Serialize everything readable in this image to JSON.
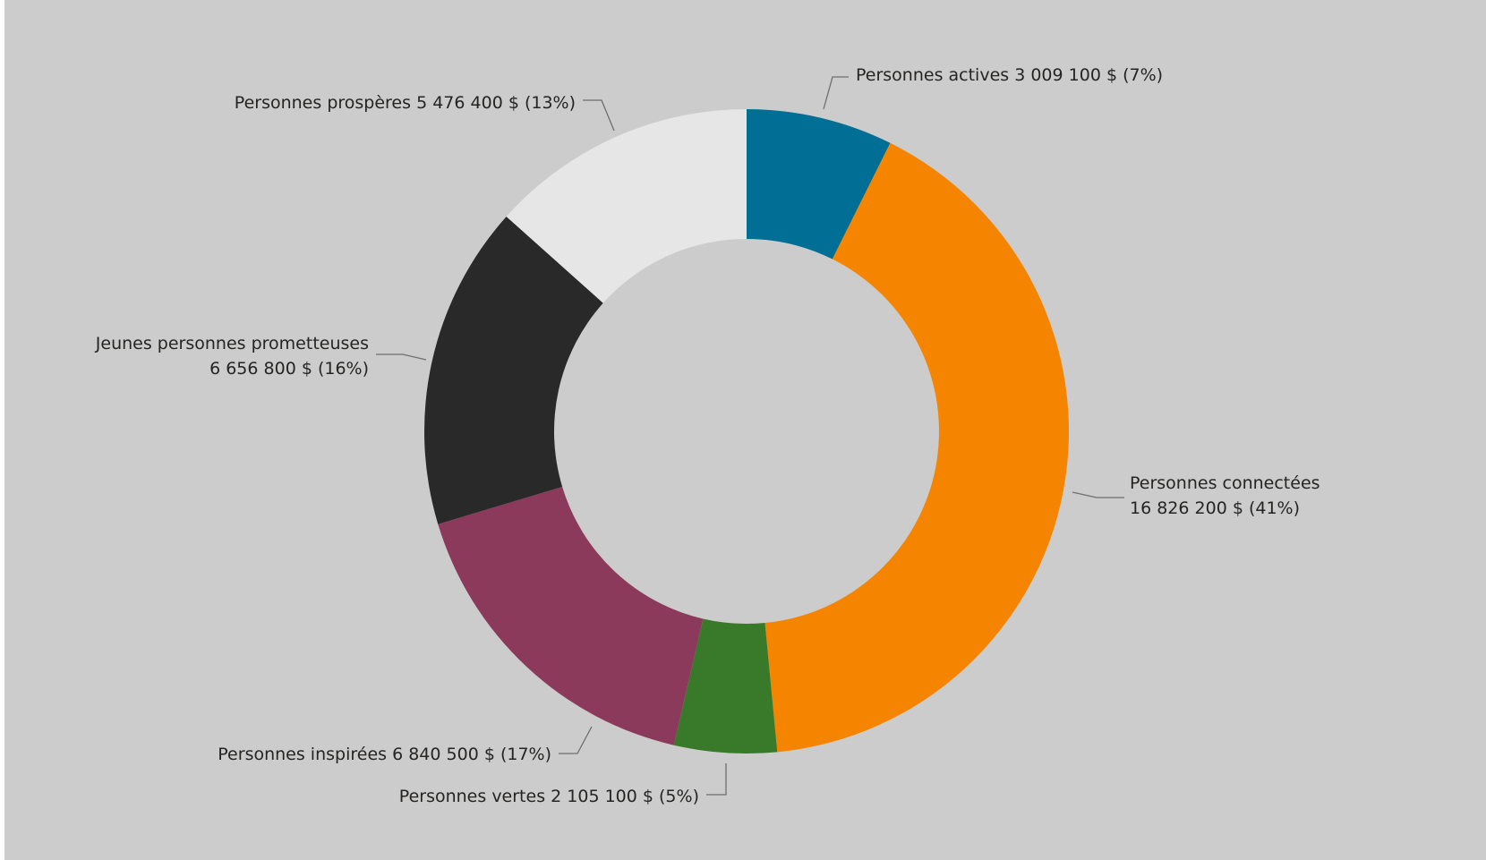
{
  "chart_data": {
    "type": "pie",
    "donut": true,
    "title": "",
    "legend": "none",
    "series": [
      {
        "name": "Personnes actives",
        "value_label": "3 009 100 $ (7%)",
        "value": 3009100,
        "percent": 7,
        "color": "#006E95"
      },
      {
        "name": "Personnes connectées",
        "value_label": "16 826 200 $ (41%)",
        "value": 16826200,
        "percent": 41,
        "color": "#F58500"
      },
      {
        "name": "Personnes vertes",
        "value_label": "2 105 100 $ (5%)",
        "value": 2105100,
        "percent": 5,
        "color": "#397A2A"
      },
      {
        "name": "Personnes inspirées",
        "value_label": "6 840 500 $ (17%)",
        "value": 6840500,
        "percent": 17,
        "color": "#8C3A5B"
      },
      {
        "name": "Jeunes personnes prometteuses",
        "value_label": "6 656 800 $ (16%)",
        "value": 6656800,
        "percent": 16,
        "color": "#292929"
      },
      {
        "name": "Personnes prospères",
        "value_label": "5 476 400 $ (13%)",
        "value": 5476400,
        "percent": 13,
        "color": "#E6E6E6"
      }
    ]
  }
}
